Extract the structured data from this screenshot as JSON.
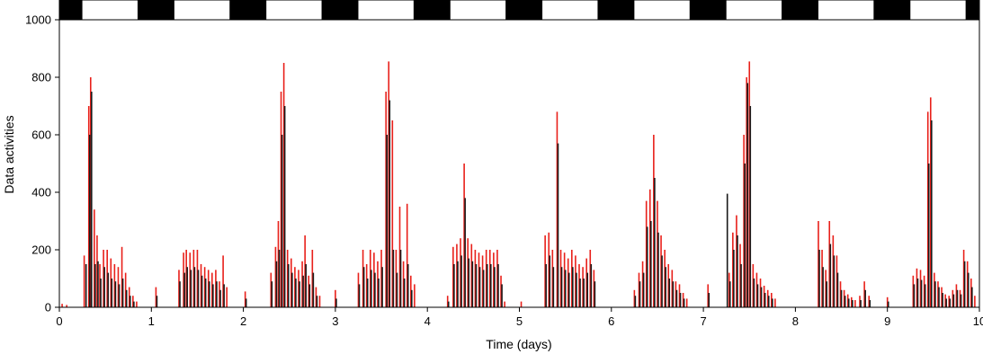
{
  "chart_data": {
    "type": "bar",
    "xlabel": "Time (days)",
    "ylabel": "Data activities",
    "xlim": [
      0,
      10
    ],
    "ylim": [
      0,
      1000
    ],
    "x_ticks": [
      0,
      1,
      2,
      3,
      4,
      5,
      6,
      7,
      8,
      9,
      10
    ],
    "y_ticks": [
      0,
      200,
      400,
      600,
      800,
      1000
    ],
    "grid": false,
    "legend": "none",
    "light_dark_bar": {
      "dark_color": "#000000",
      "light_color": "#ffffff",
      "dark_intervals": [
        [
          0,
          0.25
        ],
        [
          0.85,
          1.25
        ],
        [
          1.85,
          2.25
        ],
        [
          2.85,
          3.25
        ],
        [
          3.85,
          4.25
        ],
        [
          4.85,
          5.25
        ],
        [
          5.85,
          6.25
        ],
        [
          6.85,
          7.25
        ],
        [
          7.85,
          8.25
        ],
        [
          8.85,
          9.25
        ],
        [
          9.85,
          10
        ]
      ]
    },
    "series": [
      {
        "color": "#e8201a",
        "values": [
          [
            0.03,
            12
          ],
          [
            0.08,
            8
          ],
          [
            0.27,
            180
          ],
          [
            0.32,
            700
          ],
          [
            0.34,
            800
          ],
          [
            0.38,
            340
          ],
          [
            0.41,
            250
          ],
          [
            0.44,
            150
          ],
          [
            0.48,
            200
          ],
          [
            0.52,
            200
          ],
          [
            0.56,
            170
          ],
          [
            0.6,
            150
          ],
          [
            0.64,
            140
          ],
          [
            0.68,
            210
          ],
          [
            0.72,
            120
          ],
          [
            0.76,
            70
          ],
          [
            0.8,
            40
          ],
          [
            0.84,
            20
          ],
          [
            1.05,
            70
          ],
          [
            1.3,
            130
          ],
          [
            1.35,
            190
          ],
          [
            1.38,
            200
          ],
          [
            1.42,
            190
          ],
          [
            1.46,
            200
          ],
          [
            1.5,
            200
          ],
          [
            1.54,
            150
          ],
          [
            1.58,
            140
          ],
          [
            1.62,
            130
          ],
          [
            1.66,
            120
          ],
          [
            1.7,
            130
          ],
          [
            1.74,
            90
          ],
          [
            1.78,
            180
          ],
          [
            1.82,
            70
          ],
          [
            2.02,
            55
          ],
          [
            2.3,
            120
          ],
          [
            2.35,
            210
          ],
          [
            2.38,
            300
          ],
          [
            2.41,
            750
          ],
          [
            2.44,
            850
          ],
          [
            2.48,
            200
          ],
          [
            2.52,
            170
          ],
          [
            2.56,
            140
          ],
          [
            2.6,
            130
          ],
          [
            2.64,
            160
          ],
          [
            2.67,
            250
          ],
          [
            2.71,
            110
          ],
          [
            2.75,
            200
          ],
          [
            2.79,
            70
          ],
          [
            2.83,
            40
          ],
          [
            3.0,
            60
          ],
          [
            3.25,
            120
          ],
          [
            3.3,
            200
          ],
          [
            3.34,
            150
          ],
          [
            3.38,
            200
          ],
          [
            3.42,
            190
          ],
          [
            3.46,
            160
          ],
          [
            3.5,
            200
          ],
          [
            3.55,
            750
          ],
          [
            3.58,
            855
          ],
          [
            3.62,
            650
          ],
          [
            3.66,
            200
          ],
          [
            3.7,
            350
          ],
          [
            3.74,
            160
          ],
          [
            3.78,
            360
          ],
          [
            3.82,
            110
          ],
          [
            3.86,
            80
          ],
          [
            4.22,
            40
          ],
          [
            4.28,
            210
          ],
          [
            4.32,
            220
          ],
          [
            4.36,
            240
          ],
          [
            4.4,
            500
          ],
          [
            4.44,
            240
          ],
          [
            4.48,
            220
          ],
          [
            4.52,
            200
          ],
          [
            4.56,
            190
          ],
          [
            4.6,
            180
          ],
          [
            4.64,
            200
          ],
          [
            4.68,
            200
          ],
          [
            4.72,
            190
          ],
          [
            4.76,
            200
          ],
          [
            4.8,
            110
          ],
          [
            4.84,
            20
          ],
          [
            5.02,
            20
          ],
          [
            5.28,
            250
          ],
          [
            5.32,
            260
          ],
          [
            5.36,
            200
          ],
          [
            5.41,
            680
          ],
          [
            5.45,
            200
          ],
          [
            5.49,
            190
          ],
          [
            5.53,
            170
          ],
          [
            5.57,
            200
          ],
          [
            5.61,
            180
          ],
          [
            5.65,
            150
          ],
          [
            5.69,
            140
          ],
          [
            5.73,
            170
          ],
          [
            5.77,
            200
          ],
          [
            5.81,
            130
          ],
          [
            6.25,
            60
          ],
          [
            6.3,
            120
          ],
          [
            6.34,
            160
          ],
          [
            6.38,
            370
          ],
          [
            6.42,
            410
          ],
          [
            6.46,
            600
          ],
          [
            6.5,
            370
          ],
          [
            6.54,
            250
          ],
          [
            6.58,
            200
          ],
          [
            6.62,
            150
          ],
          [
            6.66,
            130
          ],
          [
            6.7,
            90
          ],
          [
            6.74,
            80
          ],
          [
            6.78,
            50
          ],
          [
            6.82,
            30
          ],
          [
            7.05,
            80
          ],
          [
            7.28,
            120
          ],
          [
            7.32,
            260
          ],
          [
            7.36,
            320
          ],
          [
            7.4,
            220
          ],
          [
            7.44,
            600
          ],
          [
            7.47,
            800
          ],
          [
            7.5,
            855
          ],
          [
            7.54,
            150
          ],
          [
            7.58,
            120
          ],
          [
            7.62,
            100
          ],
          [
            7.66,
            75
          ],
          [
            7.7,
            60
          ],
          [
            7.74,
            50
          ],
          [
            7.78,
            30
          ],
          [
            8.25,
            300
          ],
          [
            8.29,
            200
          ],
          [
            8.33,
            130
          ],
          [
            8.37,
            300
          ],
          [
            8.41,
            250
          ],
          [
            8.45,
            180
          ],
          [
            8.49,
            90
          ],
          [
            8.53,
            60
          ],
          [
            8.57,
            45
          ],
          [
            8.61,
            35
          ],
          [
            8.65,
            25
          ],
          [
            8.7,
            40
          ],
          [
            8.75,
            90
          ],
          [
            8.8,
            40
          ],
          [
            9.0,
            35
          ],
          [
            9.28,
            110
          ],
          [
            9.32,
            135
          ],
          [
            9.36,
            130
          ],
          [
            9.4,
            110
          ],
          [
            9.44,
            680
          ],
          [
            9.47,
            730
          ],
          [
            9.51,
            120
          ],
          [
            9.55,
            90
          ],
          [
            9.59,
            70
          ],
          [
            9.63,
            45
          ],
          [
            9.67,
            40
          ],
          [
            9.71,
            60
          ],
          [
            9.75,
            80
          ],
          [
            9.79,
            60
          ],
          [
            9.83,
            200
          ],
          [
            9.87,
            160
          ],
          [
            9.91,
            100
          ],
          [
            9.95,
            40
          ]
        ]
      },
      {
        "color": "#1a1a1a",
        "values": [
          [
            0.29,
            150
          ],
          [
            0.33,
            600
          ],
          [
            0.35,
            750
          ],
          [
            0.39,
            150
          ],
          [
            0.42,
            160
          ],
          [
            0.45,
            100
          ],
          [
            0.49,
            140
          ],
          [
            0.53,
            120
          ],
          [
            0.57,
            100
          ],
          [
            0.61,
            90
          ],
          [
            0.65,
            80
          ],
          [
            0.69,
            100
          ],
          [
            0.73,
            60
          ],
          [
            0.77,
            40
          ],
          [
            0.81,
            20
          ],
          [
            1.06,
            40
          ],
          [
            1.31,
            90
          ],
          [
            1.36,
            120
          ],
          [
            1.39,
            140
          ],
          [
            1.43,
            130
          ],
          [
            1.47,
            140
          ],
          [
            1.51,
            130
          ],
          [
            1.55,
            110
          ],
          [
            1.59,
            100
          ],
          [
            1.63,
            90
          ],
          [
            1.67,
            80
          ],
          [
            1.71,
            90
          ],
          [
            1.75,
            60
          ],
          [
            1.79,
            80
          ],
          [
            2.03,
            30
          ],
          [
            2.31,
            90
          ],
          [
            2.36,
            160
          ],
          [
            2.39,
            200
          ],
          [
            2.42,
            600
          ],
          [
            2.45,
            700
          ],
          [
            2.49,
            150
          ],
          [
            2.53,
            120
          ],
          [
            2.57,
            100
          ],
          [
            2.61,
            90
          ],
          [
            2.65,
            110
          ],
          [
            2.68,
            150
          ],
          [
            2.72,
            80
          ],
          [
            2.76,
            120
          ],
          [
            2.8,
            40
          ],
          [
            3.01,
            30
          ],
          [
            3.26,
            80
          ],
          [
            3.31,
            140
          ],
          [
            3.35,
            100
          ],
          [
            3.39,
            130
          ],
          [
            3.43,
            120
          ],
          [
            3.47,
            100
          ],
          [
            3.51,
            140
          ],
          [
            3.56,
            600
          ],
          [
            3.59,
            720
          ],
          [
            3.63,
            200
          ],
          [
            3.67,
            120
          ],
          [
            3.71,
            200
          ],
          [
            3.75,
            100
          ],
          [
            3.79,
            150
          ],
          [
            3.83,
            60
          ],
          [
            4.23,
            20
          ],
          [
            4.29,
            150
          ],
          [
            4.33,
            160
          ],
          [
            4.37,
            180
          ],
          [
            4.41,
            380
          ],
          [
            4.45,
            170
          ],
          [
            4.49,
            160
          ],
          [
            4.53,
            150
          ],
          [
            4.57,
            140
          ],
          [
            4.61,
            130
          ],
          [
            4.65,
            150
          ],
          [
            4.69,
            150
          ],
          [
            4.73,
            140
          ],
          [
            4.77,
            150
          ],
          [
            4.81,
            80
          ],
          [
            5.29,
            150
          ],
          [
            5.33,
            180
          ],
          [
            5.37,
            140
          ],
          [
            5.42,
            570
          ],
          [
            5.46,
            140
          ],
          [
            5.5,
            130
          ],
          [
            5.54,
            120
          ],
          [
            5.58,
            140
          ],
          [
            5.62,
            120
          ],
          [
            5.66,
            100
          ],
          [
            5.7,
            100
          ],
          [
            5.74,
            120
          ],
          [
            5.78,
            150
          ],
          [
            5.82,
            90
          ],
          [
            6.26,
            40
          ],
          [
            6.31,
            90
          ],
          [
            6.35,
            120
          ],
          [
            6.39,
            280
          ],
          [
            6.43,
            300
          ],
          [
            6.47,
            450
          ],
          [
            6.51,
            260
          ],
          [
            6.55,
            180
          ],
          [
            6.59,
            140
          ],
          [
            6.63,
            100
          ],
          [
            6.67,
            90
          ],
          [
            6.71,
            60
          ],
          [
            6.75,
            50
          ],
          [
            6.79,
            30
          ],
          [
            7.06,
            50
          ],
          [
            7.26,
            395
          ],
          [
            7.29,
            90
          ],
          [
            7.33,
            200
          ],
          [
            7.37,
            250
          ],
          [
            7.41,
            150
          ],
          [
            7.45,
            500
          ],
          [
            7.48,
            780
          ],
          [
            7.51,
            700
          ],
          [
            7.55,
            100
          ],
          [
            7.59,
            80
          ],
          [
            7.63,
            70
          ],
          [
            7.67,
            50
          ],
          [
            7.71,
            40
          ],
          [
            7.75,
            30
          ],
          [
            8.26,
            200
          ],
          [
            8.3,
            140
          ],
          [
            8.34,
            90
          ],
          [
            8.38,
            220
          ],
          [
            8.42,
            180
          ],
          [
            8.46,
            120
          ],
          [
            8.5,
            60
          ],
          [
            8.54,
            40
          ],
          [
            8.58,
            30
          ],
          [
            8.62,
            25
          ],
          [
            8.71,
            25
          ],
          [
            8.76,
            60
          ],
          [
            8.81,
            25
          ],
          [
            9.01,
            20
          ],
          [
            9.29,
            80
          ],
          [
            9.33,
            100
          ],
          [
            9.37,
            95
          ],
          [
            9.41,
            80
          ],
          [
            9.45,
            500
          ],
          [
            9.48,
            650
          ],
          [
            9.52,
            90
          ],
          [
            9.56,
            70
          ],
          [
            9.6,
            50
          ],
          [
            9.64,
            30
          ],
          [
            9.68,
            30
          ],
          [
            9.72,
            45
          ],
          [
            9.76,
            60
          ],
          [
            9.8,
            45
          ],
          [
            9.84,
            160
          ],
          [
            9.88,
            120
          ],
          [
            9.92,
            70
          ]
        ]
      }
    ]
  }
}
